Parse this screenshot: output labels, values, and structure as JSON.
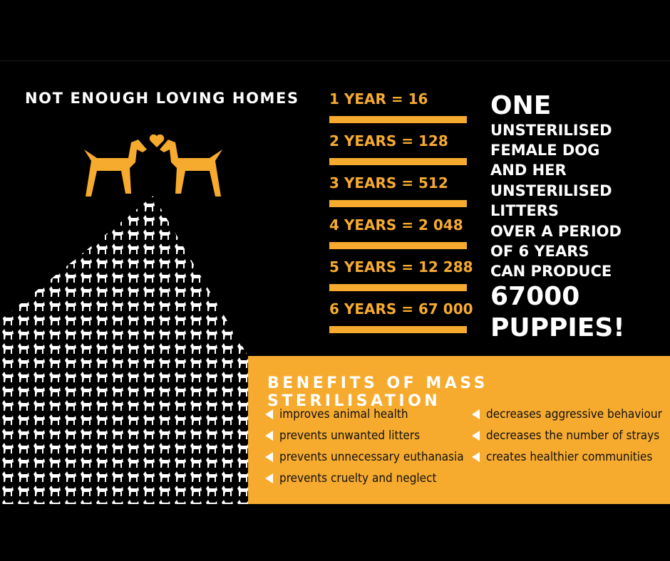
{
  "header": {
    "title": "NOT ENOUGH LOVING HOMES"
  },
  "growth": [
    "1 YEAR = 16",
    "2 YEARS = 128",
    "3 YEARS = 512",
    "4 YEARS = 2 048",
    "5 YEARS = 12 288",
    "6 YEARS = 67 000"
  ],
  "statement": [
    "ONE",
    "UNSTERILISED",
    "FEMALE DOG",
    "AND HER",
    "UNSTERILISED",
    "LITTERS",
    "OVER A PERIOD",
    "OF 6 YEARS",
    "CAN PRODUCE",
    "67000",
    "PUPPIES!"
  ],
  "benefits": {
    "title": "BENEFITS OF MASS STERILISATION",
    "columns": [
      [
        "improves animal health",
        "prevents unwanted litters",
        "prevents unnecessary euthanasia",
        "prevents cruelty and neglect"
      ],
      [
        "decreases aggressive behaviour",
        "decreases the number of strays",
        "creates healthier communities"
      ]
    ]
  }
}
